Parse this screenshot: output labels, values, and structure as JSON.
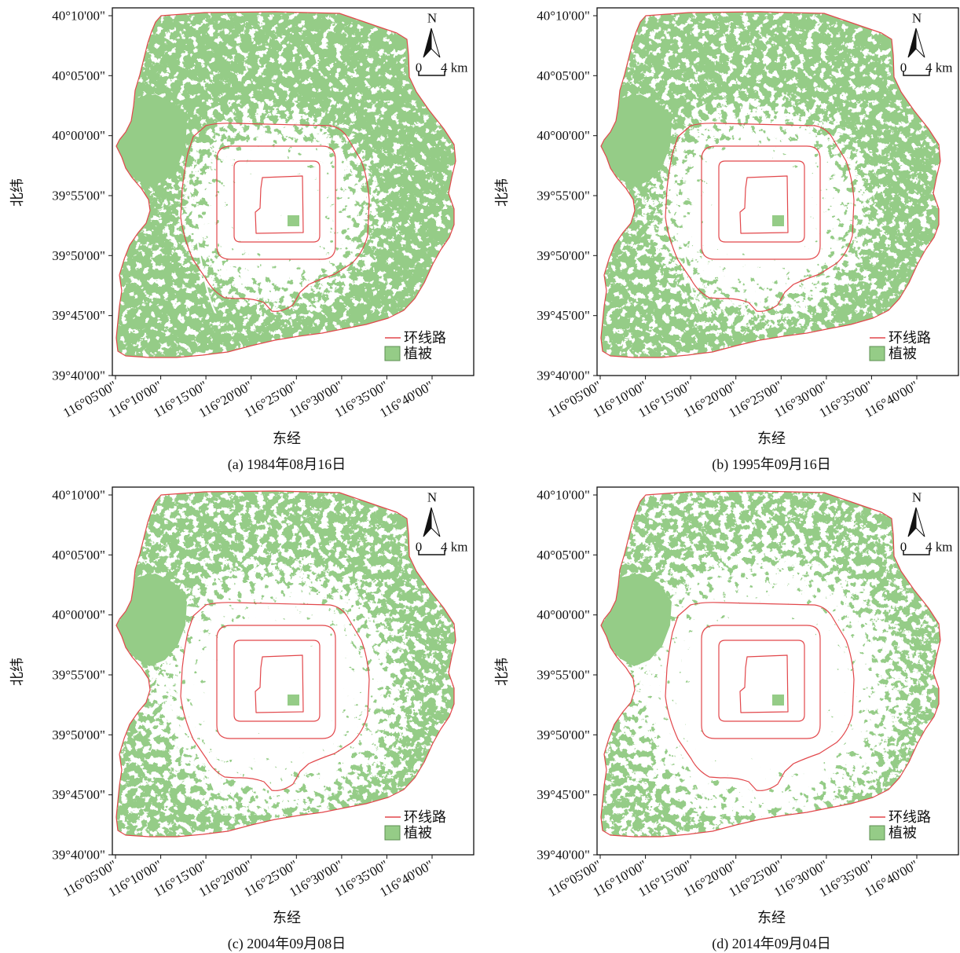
{
  "figure": {
    "y_axis_label": "北纬",
    "x_axis_label": "东经",
    "y_ticks": [
      "40°10'00\"",
      "40°05'00\"",
      "40°00'00\"",
      "39°55'00\"",
      "39°50'00\"",
      "39°45'00\"",
      "39°40'00\""
    ],
    "x_ticks": [
      "116°05'00\"",
      "116°10'00\"",
      "116°15'00\"",
      "116°20'00\"",
      "116°25'00\"",
      "116°30'00\"",
      "116°35'00\"",
      "116°40'00\""
    ],
    "north_arrow": {
      "label": "N",
      "icon": "north-arrow-icon"
    },
    "scale_bar": {
      "start_label": "0",
      "end_label": "4 km"
    },
    "legend": {
      "ring_road": {
        "label": "环线路",
        "color": "#e2474b"
      },
      "vegetation": {
        "label": "植被",
        "color": "#95cc87",
        "border_color": "#5d8f52"
      }
    },
    "boundary_color": "#e2474b",
    "urban_color": "#ffffff"
  },
  "panels": [
    {
      "caption": "(a) 1984年08月16日"
    },
    {
      "caption": "(b) 1995年09月16日"
    },
    {
      "caption": "(c) 2004年09月08日"
    },
    {
      "caption": "(d) 2014年09月04日"
    }
  ]
}
